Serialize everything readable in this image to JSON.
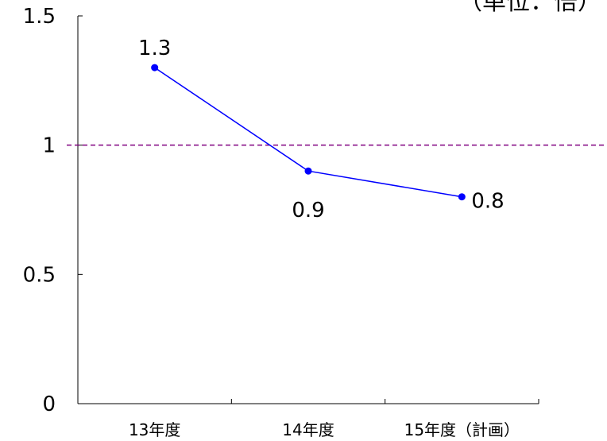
{
  "chart_data": {
    "type": "line",
    "unit_label": "（単位：倍）",
    "categories": [
      "13年度",
      "14年度",
      "15年度（計画）"
    ],
    "series": [
      {
        "values": [
          1.3,
          0.9,
          0.8
        ]
      }
    ],
    "data_labels": [
      "1.3",
      "0.9",
      "0.8"
    ],
    "y_ticks": [
      "0",
      "0.5",
      "1",
      "1.5"
    ],
    "ylim": [
      0,
      1.5
    ],
    "reference_line": 1,
    "grid": false,
    "colors": {
      "series": "#0000ff",
      "reference_line": "#800080",
      "axis": "#000000"
    }
  }
}
